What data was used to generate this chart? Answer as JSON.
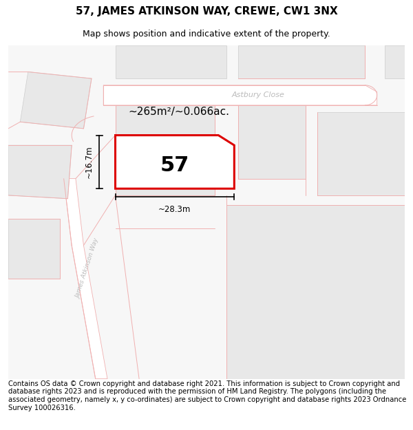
{
  "title": "57, JAMES ATKINSON WAY, CREWE, CW1 3NX",
  "subtitle": "Map shows position and indicative extent of the property.",
  "footer": "Contains OS data © Crown copyright and database right 2021. This information is subject to Crown copyright and database rights 2023 and is reproduced with the permission of HM Land Registry. The polygons (including the associated geometry, namely x, y co-ordinates) are subject to Crown copyright and database rights 2023 Ordnance Survey 100026316.",
  "area_label": "~265m²/~0.066ac.",
  "number_label": "57",
  "dim_width_label": "~28.3m",
  "dim_height_label": "~16.7m",
  "street_astbury": "Astbury Close",
  "street_james": "James Atkinson Way",
  "map_bg": "#f7f7f7",
  "road_line_color": "#f0b0b0",
  "block_fill": "#e8e8e8",
  "block_edge": "#cccccc",
  "plot_fill": "#ffffff",
  "plot_edge": "#dd0000",
  "plot_lw": 2.2,
  "title_fs": 11,
  "subtitle_fs": 9,
  "footer_fs": 7.2,
  "label57_fs": 22,
  "area_fs": 11,
  "streetlabel_fs": 8,
  "dimlabel_fs": 8.5
}
